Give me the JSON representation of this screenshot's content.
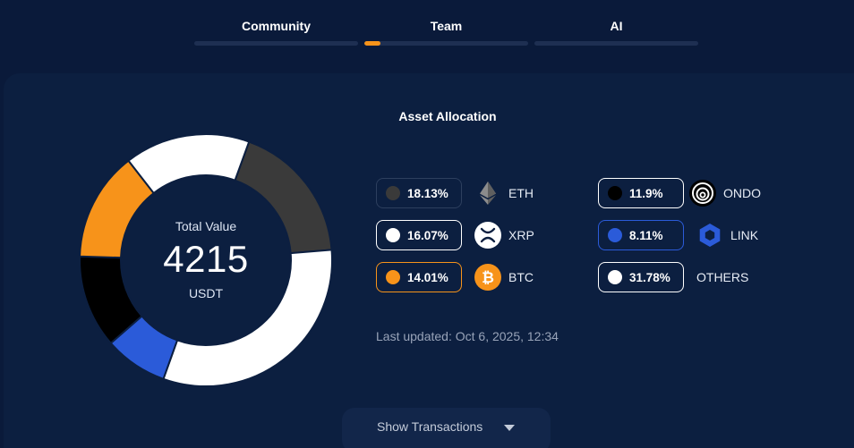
{
  "tabs": [
    {
      "label": "Community",
      "progress": 0
    },
    {
      "label": "Team",
      "progress": 0.1
    },
    {
      "label": "AI",
      "progress": 0
    }
  ],
  "chart_data": {
    "type": "pie",
    "title": "Asset Allocation",
    "center_title": "Total Value",
    "center_value": "4215",
    "center_unit": "USDT",
    "categories": [
      "ETH",
      "OTHERS",
      "LINK",
      "ONDO",
      "BTC",
      "XRP"
    ],
    "values": [
      18.13,
      31.78,
      8.11,
      11.9,
      14.01,
      16.07
    ],
    "colors": [
      "#3a3a3a",
      "#ffffff",
      "#2b5bd9",
      "#000000",
      "#f7931a",
      "#ffffff"
    ]
  },
  "legend": [
    {
      "pct": "18.13%",
      "label": "ETH",
      "dot_color": "#3a3a3a",
      "border_color": "#2d3f5e",
      "icon": "eth-icon"
    },
    {
      "pct": "16.07%",
      "label": "XRP",
      "dot_color": "#ffffff",
      "border_color": "#ffffff",
      "icon": "xrp-icon"
    },
    {
      "pct": "14.01%",
      "label": "BTC",
      "dot_color": "#f7931a",
      "border_color": "#f7931a",
      "icon": "btc-icon"
    },
    {
      "pct": "11.9%",
      "label": "ONDO",
      "dot_color": "#000000",
      "border_color": "#ffffff",
      "icon": "ondo-icon"
    },
    {
      "pct": "8.11%",
      "label": "LINK",
      "dot_color": "#2b5bd9",
      "border_color": "#2b5bd9",
      "icon": "link-icon"
    },
    {
      "pct": "31.78%",
      "label": "OTHERS",
      "dot_color": "#ffffff",
      "border_color": "#ffffff",
      "icon": ""
    }
  ],
  "last_updated": "Last updated: Oct 6, 2025, 12:34",
  "show_transactions": "Show Transactions"
}
